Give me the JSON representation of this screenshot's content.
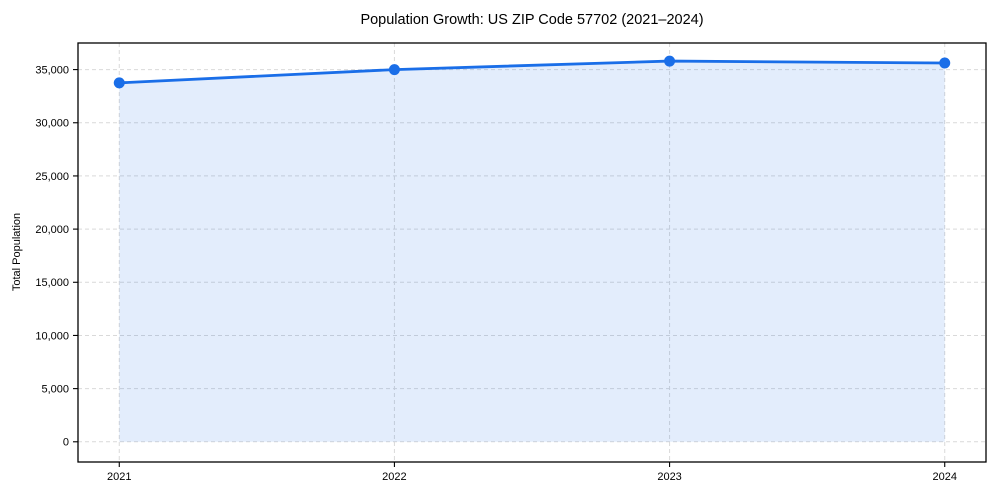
{
  "chart_data": {
    "type": "line",
    "title": "Population Growth: US ZIP Code 57702 (2021–2024)",
    "xlabel": "",
    "ylabel": "Total Population",
    "x": [
      2021,
      2022,
      2023,
      2024
    ],
    "series": [
      {
        "name": "Total Population",
        "values": [
          33750,
          35000,
          35800,
          35620
        ]
      }
    ],
    "xticks": {
      "values": [
        2021,
        2022,
        2023,
        2024
      ],
      "labels": [
        "2021",
        "2022",
        "2023",
        "2024"
      ]
    },
    "yticks": {
      "values": [
        0,
        5000,
        10000,
        15000,
        20000,
        25000,
        30000,
        35000
      ],
      "labels": [
        "0",
        "5,000",
        "10,000",
        "15,000",
        "20,000",
        "25,000",
        "30,000",
        "35,000"
      ]
    },
    "xlim": [
      2020.85,
      2024.15
    ],
    "ylim": [
      -1900,
      37500
    ],
    "grid": true,
    "grid_style": "dashed",
    "legend": "none",
    "marker": "circle",
    "fill_baseline": 0,
    "colors": {
      "line": "#1a6ee8",
      "marker": "#1a6ee8",
      "fill": "#1a6ee8",
      "fill_opacity": 0.12,
      "grid": "#d9d9d9",
      "spine": "#000000",
      "text": "#000000"
    }
  }
}
